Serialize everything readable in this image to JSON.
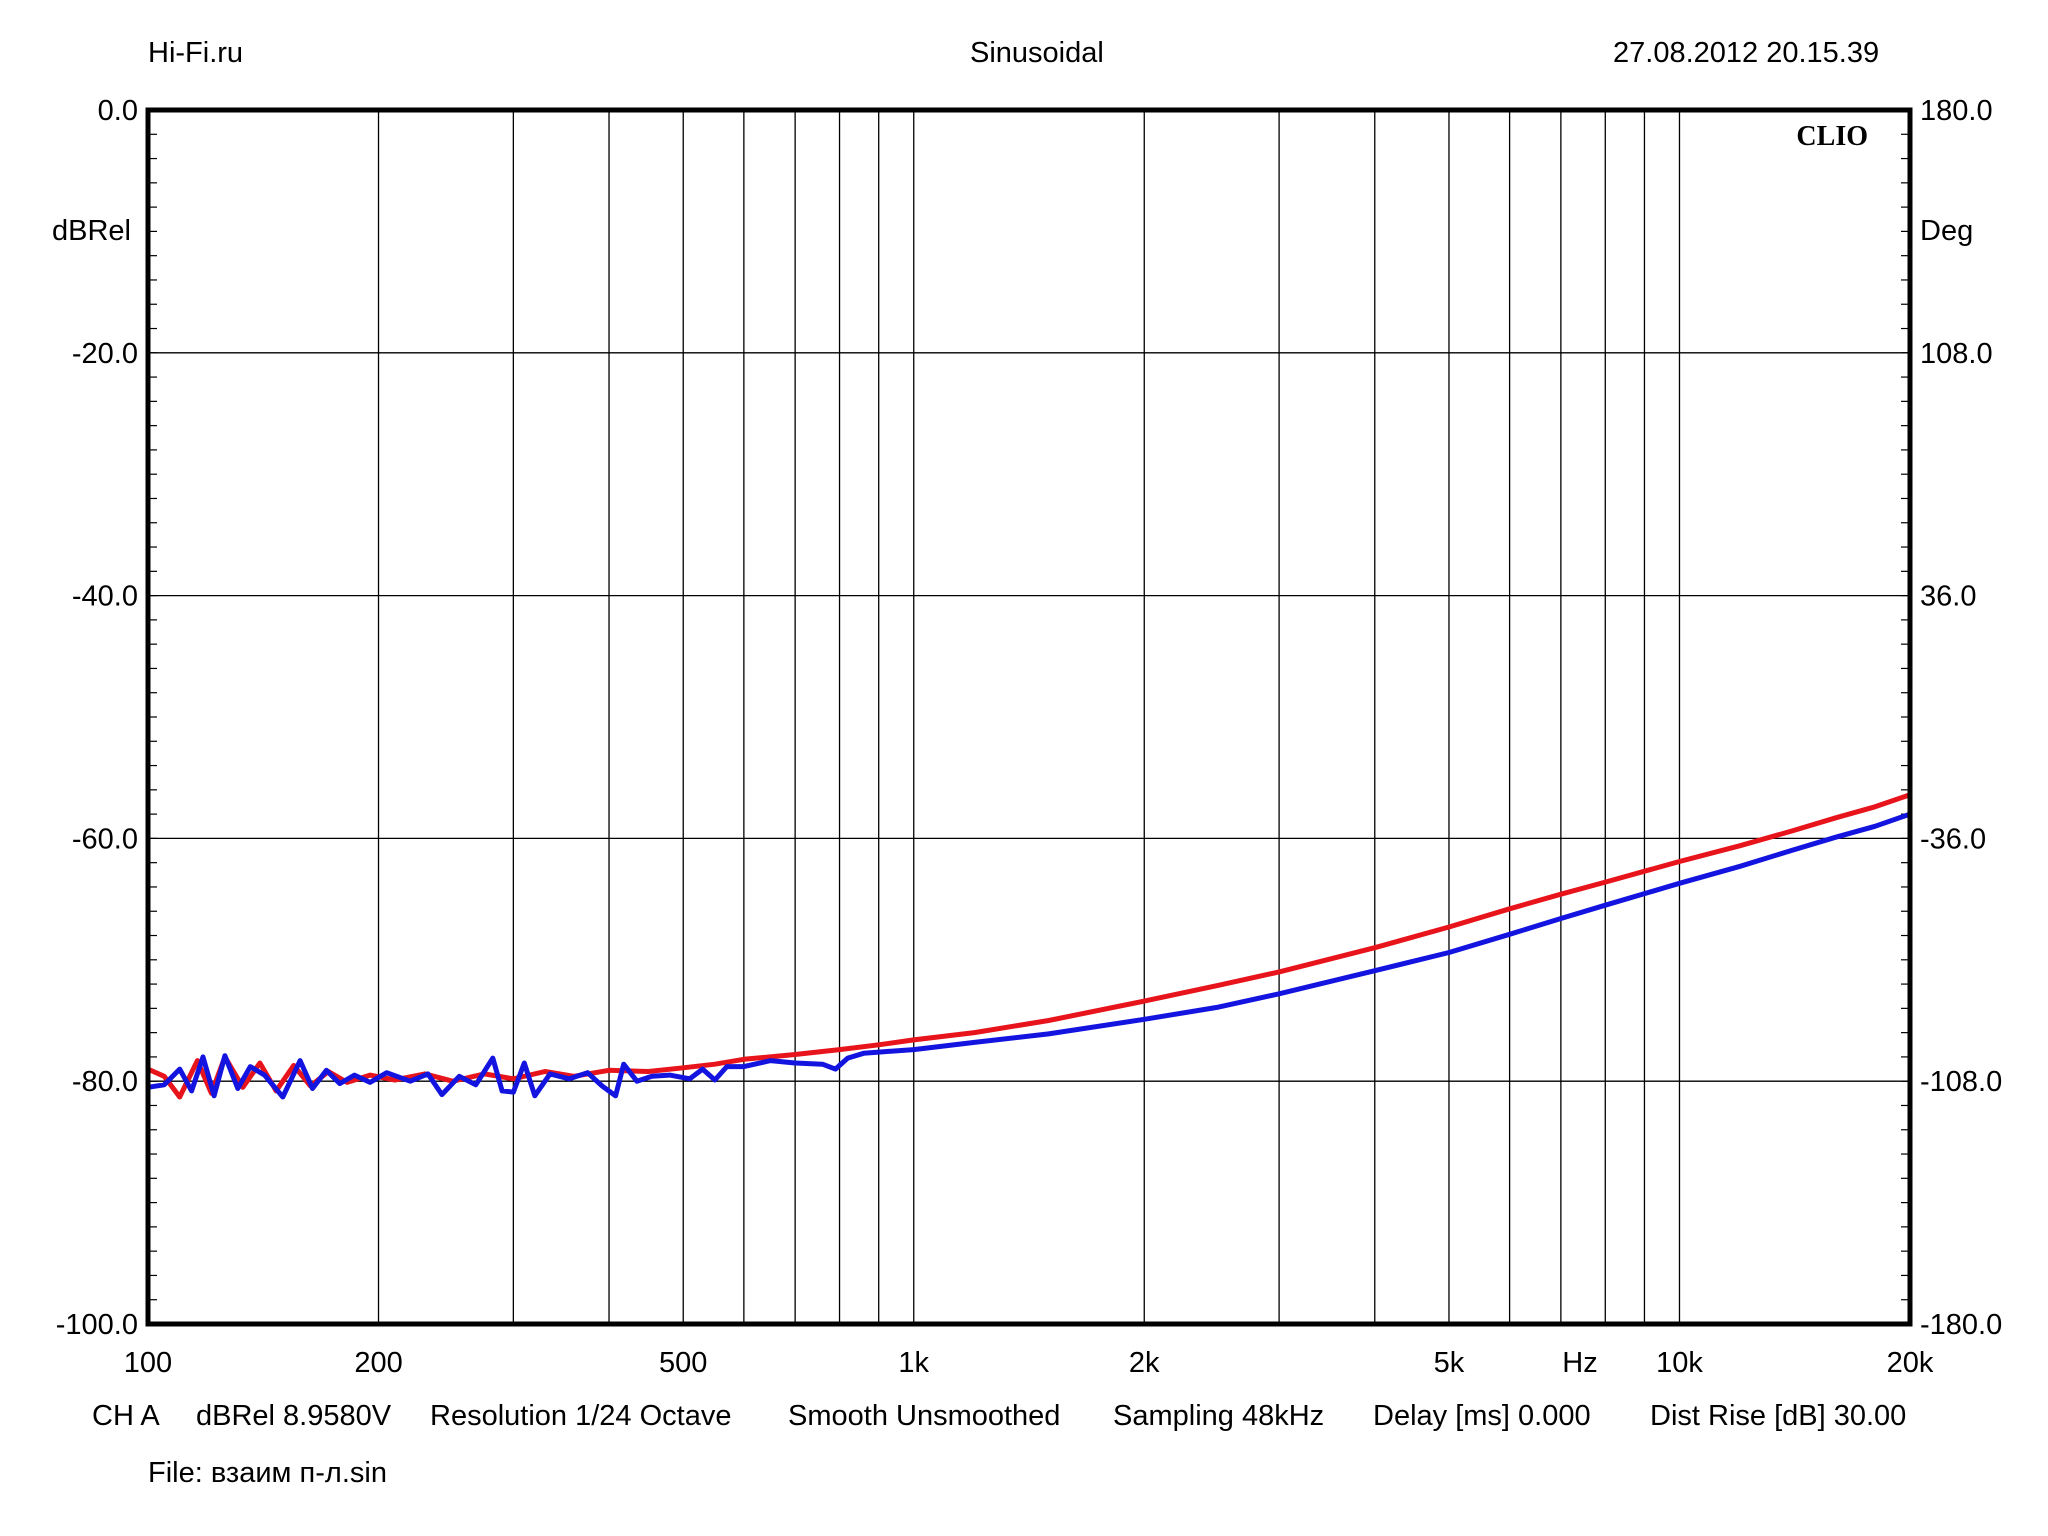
{
  "header": {
    "left": "Hi-Fi.ru",
    "center": "Sinusoidal",
    "right": "27.08.2012 20.15.39"
  },
  "brand": "CLIO",
  "footer": {
    "channel": "CH A",
    "level": "dBRel 8.9580V",
    "resolution": "Resolution 1/24 Octave",
    "smooth": "Smooth Unsmoothed",
    "sampling": "Sampling 48kHz",
    "delay": "Delay [ms] 0.000",
    "dist_rise": "Dist Rise [dB] 30.00",
    "file": "File: взаим п-л.sin"
  },
  "chart_data": {
    "type": "line",
    "x_scale": "log",
    "xlim": [
      100,
      20000
    ],
    "ylim": [
      -100,
      0
    ],
    "y2lim": [
      -180,
      180
    ],
    "ylabel": "dBRel",
    "y2label": "Deg",
    "xunit_label": "Hz",
    "grid": true,
    "y_ticks": [
      {
        "value": 0,
        "label": "0.0"
      },
      {
        "value": -20,
        "label": "-20.0"
      },
      {
        "value": -40,
        "label": "-40.0"
      },
      {
        "value": -60,
        "label": "-60.0"
      },
      {
        "value": -80,
        "label": "-80.0"
      },
      {
        "value": -100,
        "label": "-100.0"
      }
    ],
    "y2_ticks": [
      {
        "value": 180,
        "label": "180.0"
      },
      {
        "value": 108,
        "label": "108.0"
      },
      {
        "value": 36,
        "label": "36.0"
      },
      {
        "value": -36,
        "label": "-36.0"
      },
      {
        "value": -108,
        "label": "-108.0"
      },
      {
        "value": -180,
        "label": "-180.0"
      }
    ],
    "x_ticks": [
      {
        "value": 100,
        "label": "100"
      },
      {
        "value": 200,
        "label": "200"
      },
      {
        "value": 500,
        "label": "500"
      },
      {
        "value": 1000,
        "label": "1k"
      },
      {
        "value": 2000,
        "label": "2k"
      },
      {
        "value": 5000,
        "label": "5k"
      },
      {
        "value": 10000,
        "label": "10k"
      },
      {
        "value": 20000,
        "label": "20k"
      }
    ],
    "series": [
      {
        "color": "#e8141c",
        "points": [
          [
            100,
            -79
          ],
          [
            105,
            -79.6
          ],
          [
            110,
            -81.3
          ],
          [
            116,
            -78.3
          ],
          [
            121,
            -81
          ],
          [
            126,
            -78
          ],
          [
            133,
            -80.5
          ],
          [
            140,
            -78.5
          ],
          [
            147,
            -80.8
          ],
          [
            155,
            -78.7
          ],
          [
            163,
            -80.4
          ],
          [
            172,
            -79.2
          ],
          [
            182,
            -80.1
          ],
          [
            195,
            -79.5
          ],
          [
            210,
            -79.9
          ],
          [
            230,
            -79.4
          ],
          [
            250,
            -80
          ],
          [
            275,
            -79.4
          ],
          [
            300,
            -79.8
          ],
          [
            330,
            -79.2
          ],
          [
            360,
            -79.6
          ],
          [
            400,
            -79.1
          ],
          [
            450,
            -79.2
          ],
          [
            500,
            -78.9
          ],
          [
            550,
            -78.6
          ],
          [
            600,
            -78.2
          ],
          [
            700,
            -77.8
          ],
          [
            800,
            -77.4
          ],
          [
            900,
            -77
          ],
          [
            1000,
            -76.6
          ],
          [
            1200,
            -76
          ],
          [
            1500,
            -75
          ],
          [
            2000,
            -73.4
          ],
          [
            2500,
            -72.1
          ],
          [
            3000,
            -71
          ],
          [
            4000,
            -69
          ],
          [
            5000,
            -67.3
          ],
          [
            6000,
            -65.8
          ],
          [
            7000,
            -64.6
          ],
          [
            8000,
            -63.6
          ],
          [
            10000,
            -61.9
          ],
          [
            12000,
            -60.6
          ],
          [
            14000,
            -59.4
          ],
          [
            16000,
            -58.3
          ],
          [
            18000,
            -57.4
          ],
          [
            20000,
            -56.4
          ]
        ]
      },
      {
        "color": "#1414e0",
        "points": [
          [
            100,
            -80.5
          ],
          [
            105,
            -80.3
          ],
          [
            110,
            -79
          ],
          [
            114,
            -80.8
          ],
          [
            118,
            -78
          ],
          [
            122,
            -81.2
          ],
          [
            126,
            -77.9
          ],
          [
            131,
            -80.6
          ],
          [
            136,
            -78.8
          ],
          [
            142,
            -79.5
          ],
          [
            150,
            -81.3
          ],
          [
            158,
            -78.3
          ],
          [
            164,
            -80.6
          ],
          [
            171,
            -79.1
          ],
          [
            178,
            -80.2
          ],
          [
            186,
            -79.5
          ],
          [
            195,
            -80.1
          ],
          [
            205,
            -79.3
          ],
          [
            220,
            -80
          ],
          [
            232,
            -79.4
          ],
          [
            242,
            -81.1
          ],
          [
            255,
            -79.6
          ],
          [
            268,
            -80.3
          ],
          [
            282,
            -78.1
          ],
          [
            290,
            -80.8
          ],
          [
            300,
            -80.9
          ],
          [
            310,
            -78.5
          ],
          [
            320,
            -81.2
          ],
          [
            335,
            -79.4
          ],
          [
            355,
            -79.8
          ],
          [
            375,
            -79.3
          ],
          [
            392,
            -80.4
          ],
          [
            408,
            -81.2
          ],
          [
            418,
            -78.6
          ],
          [
            435,
            -80
          ],
          [
            455,
            -79.6
          ],
          [
            480,
            -79.5
          ],
          [
            510,
            -79.8
          ],
          [
            530,
            -79
          ],
          [
            550,
            -79.9
          ],
          [
            570,
            -78.8
          ],
          [
            600,
            -78.8
          ],
          [
            650,
            -78.3
          ],
          [
            700,
            -78.5
          ],
          [
            760,
            -78.6
          ],
          [
            790,
            -79
          ],
          [
            820,
            -78.1
          ],
          [
            860,
            -77.7
          ],
          [
            900,
            -77.6
          ],
          [
            1000,
            -77.4
          ],
          [
            1200,
            -76.8
          ],
          [
            1500,
            -76.1
          ],
          [
            2000,
            -74.9
          ],
          [
            2500,
            -73.9
          ],
          [
            3000,
            -72.8
          ],
          [
            4000,
            -70.9
          ],
          [
            5000,
            -69.4
          ],
          [
            6000,
            -67.9
          ],
          [
            7000,
            -66.6
          ],
          [
            8000,
            -65.5
          ],
          [
            10000,
            -63.7
          ],
          [
            12000,
            -62.3
          ],
          [
            14000,
            -61
          ],
          [
            16000,
            -59.9
          ],
          [
            18000,
            -59
          ],
          [
            20000,
            -58
          ]
        ]
      }
    ]
  }
}
